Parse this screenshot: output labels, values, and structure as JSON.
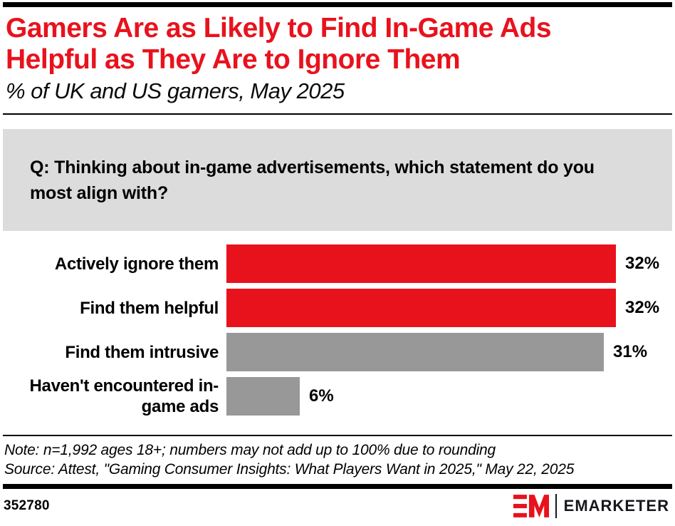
{
  "header": {
    "title_line1": "Gamers Are as Likely to Find In-Game Ads",
    "title_line2": "Helpful as They Are to Ignore Them",
    "subtitle": "% of UK and US gamers, May 2025"
  },
  "question": "Q: Thinking about in-game advertisements, which statement do you most align with?",
  "chart_data": {
    "type": "bar",
    "orientation": "horizontal",
    "title": "Gamers Are as Likely to Find In-Game Ads Helpful as They Are to Ignore Them",
    "subtitle": "% of UK and US gamers, May 2025",
    "categories": [
      "Actively ignore them",
      "Find them helpful",
      "Find them intrusive",
      "Haven't encountered in-game ads"
    ],
    "values": [
      32,
      32,
      31,
      6
    ],
    "value_labels": [
      "32%",
      "32%",
      "31%",
      "6%"
    ],
    "bar_colors": [
      "#E8121D",
      "#E8121D",
      "#989898",
      "#989898"
    ],
    "unit": "%",
    "xlim": [
      0,
      32
    ],
    "grid": false,
    "legend": false
  },
  "notes": {
    "note": "Note: n=1,992 ages 18+; numbers may not add up to 100% due to rounding",
    "source": "Source: Attest, \"Gaming Consumer Insights: What Players Want in 2025,\" May 22, 2025"
  },
  "footer": {
    "chart_id": "352780",
    "brand_name": "EMARKETER"
  },
  "colors": {
    "accent_red": "#E8121D",
    "bar_gray": "#989898",
    "question_bg": "#DCDCDC",
    "rule_black": "#000000",
    "brand_dark": "#17171C"
  }
}
